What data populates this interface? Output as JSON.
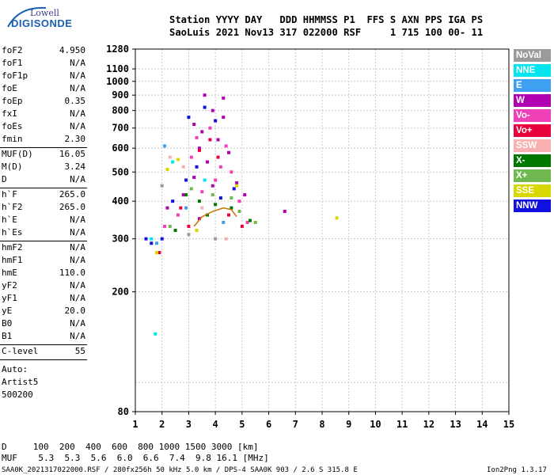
{
  "logo": {
    "line1": "Lowell",
    "line2": "DIGISONDE"
  },
  "header": {
    "line1": "Station YYYY DAY   DDD HHMMSS P1  FFS S AXN PPS IGA PS",
    "line2": "SaoLuis 2021 Nov13 317 022000 RSF     1 715 100 00- 11"
  },
  "params_group1": [
    {
      "name": "foF2",
      "value": "4.950"
    },
    {
      "name": "foF1",
      "value": "N/A"
    },
    {
      "name": "foF1p",
      "value": "N/A"
    },
    {
      "name": "foE",
      "value": "N/A"
    },
    {
      "name": "foEp",
      "value": "0.35"
    },
    {
      "name": "fxI",
      "value": "N/A"
    },
    {
      "name": "foEs",
      "value": "N/A"
    },
    {
      "name": "fmin",
      "value": "2.30"
    }
  ],
  "params_group2": [
    {
      "name": "MUF(D)",
      "value": "16.05"
    },
    {
      "name": "M(D)",
      "value": "3.24"
    },
    {
      "name": "D",
      "value": "N/A"
    }
  ],
  "params_group3": [
    {
      "name": "h`F",
      "value": "265.0"
    },
    {
      "name": "h`F2",
      "value": "265.0"
    },
    {
      "name": "h`E",
      "value": "N/A"
    },
    {
      "name": "h`Es",
      "value": "N/A"
    }
  ],
  "params_group4": [
    {
      "name": "hmF2",
      "value": "N/A"
    },
    {
      "name": "hmF1",
      "value": "N/A"
    },
    {
      "name": "hmE",
      "value": "110.0"
    },
    {
      "name": "yF2",
      "value": "N/A"
    },
    {
      "name": "yF1",
      "value": "N/A"
    },
    {
      "name": "yE",
      "value": "20.0"
    },
    {
      "name": "B0",
      "value": "N/A"
    },
    {
      "name": "B1",
      "value": "N/A"
    }
  ],
  "params_group5": [
    {
      "name": "C-level",
      "value": "55"
    }
  ],
  "auto_block": [
    "Auto:",
    "Artist5",
    "500200"
  ],
  "legend": [
    {
      "label": "NoVal",
      "color": "#9b9b9b"
    },
    {
      "label": "NNE",
      "color": "#00e5ee"
    },
    {
      "label": "E",
      "color": "#3ea0f0"
    },
    {
      "label": "W",
      "color": "#b000b0"
    },
    {
      "label": "Vo-",
      "color": "#f040b8"
    },
    {
      "label": "Vo+",
      "color": "#e8003c"
    },
    {
      "label": "SSW",
      "color": "#f8b0b0"
    },
    {
      "label": "X-",
      "color": "#007800"
    },
    {
      "label": "X+",
      "color": "#70b850"
    },
    {
      "label": "SSE",
      "color": "#d8d800"
    },
    {
      "label": "NNW",
      "color": "#1010e0"
    }
  ],
  "bottom": {
    "d_line": "D     100  200  400  600  800 1000 1500 3000 [km]",
    "muf_line": "MUF    5.3  5.3  5.6  6.0  6.6  7.4  9.8 16.1 [MHz]",
    "footer_left": "SAA0K_2021317022000.RSF / 280fx256h 50 kHz 5.0 km / DPS-4 SAA0K 903 / 2.6 S 315.8 E",
    "footer_right": "Ion2Png 1.3.17"
  },
  "chart_data": {
    "type": "scatter",
    "xlim": [
      1,
      15
    ],
    "ylim": [
      80,
      1280
    ],
    "xticks": [
      1,
      2,
      3,
      4,
      5,
      6,
      7,
      8,
      9,
      10,
      11,
      12,
      13,
      14,
      15
    ],
    "yticks": [
      80,
      200,
      300,
      400,
      500,
      600,
      700,
      800,
      900,
      1000,
      1100,
      1280
    ],
    "grid": true,
    "xlabel": "",
    "ylabel": "",
    "series": [
      {
        "color": "#b000b0",
        "points": [
          [
            3.2,
            720
          ],
          [
            3.5,
            680
          ],
          [
            3.9,
            800
          ],
          [
            4.3,
            760
          ],
          [
            3.4,
            600
          ],
          [
            4.1,
            640
          ],
          [
            3.7,
            540
          ],
          [
            4.5,
            580
          ],
          [
            3.2,
            480
          ],
          [
            4.8,
            460
          ],
          [
            3.9,
            450
          ],
          [
            4.3,
            880
          ],
          [
            3.6,
            900
          ],
          [
            2.8,
            420
          ],
          [
            5.1,
            420
          ],
          [
            2.2,
            380
          ],
          [
            6.6,
            370
          ],
          [
            3.4,
            350
          ]
        ]
      },
      {
        "color": "#f040b8",
        "points": [
          [
            3.3,
            650
          ],
          [
            3.8,
            700
          ],
          [
            4.2,
            520
          ],
          [
            4.6,
            500
          ],
          [
            3.5,
            430
          ],
          [
            4.9,
            400
          ],
          [
            2.6,
            360
          ],
          [
            2.1,
            330
          ],
          [
            5.2,
            340
          ],
          [
            4.0,
            470
          ],
          [
            3.1,
            560
          ],
          [
            4.4,
            610
          ]
        ]
      },
      {
        "color": "#1010e0",
        "points": [
          [
            3.0,
            760
          ],
          [
            3.6,
            820
          ],
          [
            4.0,
            740
          ],
          [
            3.3,
            520
          ],
          [
            4.7,
            440
          ],
          [
            2.4,
            400
          ],
          [
            2.0,
            300
          ],
          [
            1.6,
            290
          ],
          [
            1.4,
            300
          ],
          [
            2.9,
            470
          ],
          [
            4.2,
            410
          ]
        ]
      },
      {
        "color": "#e8003c",
        "points": [
          [
            3.4,
            590
          ],
          [
            4.1,
            560
          ],
          [
            3.8,
            640
          ],
          [
            2.7,
            380
          ],
          [
            3.0,
            330
          ],
          [
            4.5,
            360
          ],
          [
            1.9,
            270
          ],
          [
            5.0,
            330
          ]
        ]
      },
      {
        "color": "#007800",
        "points": [
          [
            2.9,
            420
          ],
          [
            3.4,
            400
          ],
          [
            4.0,
            390
          ],
          [
            4.6,
            380
          ],
          [
            5.3,
            345
          ],
          [
            2.5,
            320
          ],
          [
            3.7,
            360
          ]
        ]
      },
      {
        "color": "#70b850",
        "points": [
          [
            3.1,
            440
          ],
          [
            3.9,
            420
          ],
          [
            4.6,
            410
          ],
          [
            4.9,
            370
          ],
          [
            2.3,
            330
          ],
          [
            5.5,
            340
          ]
        ]
      },
      {
        "color": "#d8d800",
        "points": [
          [
            8.55,
            352
          ],
          [
            2.2,
            510
          ],
          [
            2.6,
            550
          ],
          [
            4.8,
            450
          ],
          [
            1.8,
            270
          ],
          [
            3.3,
            320
          ]
        ]
      },
      {
        "color": "#00e5ee",
        "points": [
          [
            1.75,
            145
          ],
          [
            2.4,
            540
          ],
          [
            1.6,
            300
          ],
          [
            3.6,
            470
          ]
        ]
      },
      {
        "color": "#3ea0f0",
        "points": [
          [
            2.1,
            610
          ],
          [
            1.8,
            290
          ],
          [
            2.9,
            380
          ],
          [
            4.3,
            340
          ]
        ]
      },
      {
        "color": "#f8b0b0",
        "points": [
          [
            2.3,
            560
          ],
          [
            2.8,
            520
          ],
          [
            3.5,
            380
          ],
          [
            4.4,
            300
          ]
        ]
      },
      {
        "color": "#9b9b9b",
        "points": [
          [
            2.0,
            450
          ],
          [
            3.0,
            310
          ],
          [
            4.0,
            300
          ]
        ]
      }
    ],
    "trace": {
      "color": "#c87000",
      "points": [
        [
          3.2,
          330
        ],
        [
          3.5,
          355
        ],
        [
          3.9,
          370
        ],
        [
          4.3,
          380
        ],
        [
          4.6,
          375
        ],
        [
          4.8,
          355
        ]
      ]
    }
  }
}
